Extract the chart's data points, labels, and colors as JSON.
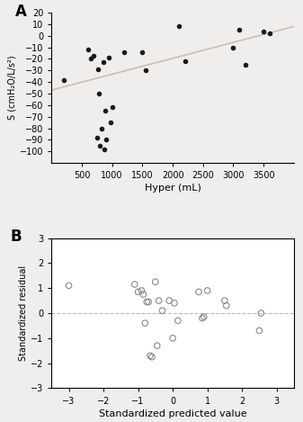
{
  "panel_A": {
    "scatter_x": [
      200,
      600,
      650,
      700,
      750,
      770,
      780,
      800,
      820,
      850,
      870,
      880,
      900,
      950,
      980,
      1000,
      1200,
      1500,
      1550,
      2100,
      2200,
      3000,
      3100,
      3200,
      3500,
      3600
    ],
    "scatter_y": [
      -38,
      -12,
      -20,
      -17,
      -88,
      -29,
      -50,
      -95,
      -80,
      -23,
      -98,
      -65,
      -90,
      -19,
      -75,
      -62,
      -14,
      -14,
      -30,
      8,
      -22,
      -10,
      5,
      -25,
      4,
      2
    ],
    "line_x": [
      0,
      4000
    ],
    "line_y": [
      -47,
      8
    ],
    "xlabel": "Hyper (mL)",
    "ylabel": "S (cmH₂O/L/s²)",
    "xlim": [
      0,
      4000
    ],
    "ylim": [
      -110,
      20
    ],
    "xticks": [
      500,
      1000,
      1500,
      2000,
      2500,
      3000,
      3500
    ],
    "yticks": [
      -100,
      -90,
      -80,
      -70,
      -60,
      -50,
      -40,
      -30,
      -20,
      -10,
      0,
      10,
      20
    ],
    "label": "A",
    "line_color": "#c8c0b8",
    "scatter_color": "#1a1a1a"
  },
  "panel_B": {
    "scatter_x": [
      -3.0,
      -1.1,
      -1.0,
      -0.9,
      -0.85,
      -0.8,
      -0.75,
      -0.7,
      -0.65,
      -0.6,
      -0.5,
      -0.45,
      -0.4,
      -0.3,
      -0.1,
      0.0,
      0.05,
      0.15,
      0.75,
      0.85,
      0.9,
      1.0,
      1.5,
      1.55,
      2.5,
      2.55
    ],
    "scatter_y": [
      1.1,
      1.15,
      0.85,
      0.9,
      0.75,
      -0.4,
      0.45,
      0.45,
      -1.7,
      -1.75,
      1.25,
      -1.3,
      0.5,
      0.1,
      0.5,
      -1.0,
      0.4,
      -0.3,
      0.85,
      -0.2,
      -0.15,
      0.9,
      0.5,
      0.3,
      -0.7,
      0.0
    ],
    "hline_y": 0,
    "xlabel": "Standardized predicted value",
    "ylabel": "Standardized residual",
    "xlim": [
      -3.5,
      3.5
    ],
    "ylim": [
      -3,
      3
    ],
    "xticks": [
      -3,
      -2,
      -1,
      0,
      1,
      2,
      3
    ],
    "yticks": [
      -3,
      -2,
      -1,
      0,
      1,
      2,
      3
    ],
    "label": "B",
    "hline_color": "#b8b8b8",
    "scatter_facecolor": "none",
    "scatter_edgecolor": "#888888"
  },
  "fig_bg": "#f0eeec",
  "panel_bg": "#ffffff"
}
